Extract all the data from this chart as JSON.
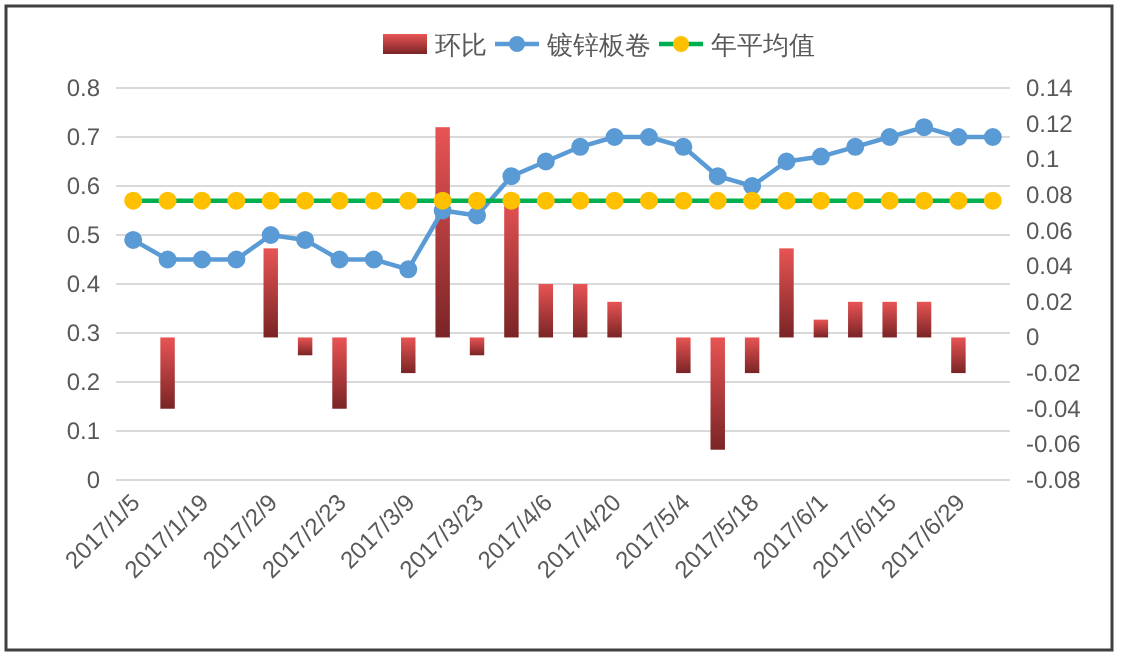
{
  "chart_data": {
    "type": "bar",
    "categories": [
      "2017/1/5",
      null,
      "2017/1/19",
      null,
      "2017/2/9",
      null,
      "2017/2/23",
      null,
      "2017/3/9",
      null,
      "2017/3/23",
      null,
      "2017/4/6",
      null,
      "2017/4/20",
      null,
      "2017/5/4",
      null,
      "2017/5/18",
      null,
      "2017/6/1",
      null,
      "2017/6/15",
      null,
      "2017/6/29",
      null
    ],
    "series": [
      {
        "name": "环比",
        "axis": "y2",
        "color": "#e85454",
        "values": [
          null,
          -0.04,
          null,
          null,
          0.05,
          -0.01,
          -0.04,
          null,
          -0.02,
          0.118,
          -0.01,
          0.08,
          0.03,
          0.03,
          0.02,
          null,
          -0.02,
          -0.063,
          -0.02,
          0.05,
          0.01,
          0.02,
          0.02,
          0.02,
          -0.02,
          null
        ]
      },
      {
        "name": "镀锌板卷",
        "type": "line",
        "color": "#5b9bd5",
        "values": [
          0.49,
          0.45,
          0.45,
          0.45,
          0.5,
          0.49,
          0.45,
          0.45,
          0.43,
          0.55,
          0.54,
          0.62,
          0.65,
          0.68,
          0.7,
          0.7,
          0.68,
          0.62,
          0.6,
          0.65,
          0.66,
          0.68,
          0.7,
          0.72,
          0.7,
          0.7
        ]
      },
      {
        "name": "年平均值",
        "type": "line",
        "color": "#00b050",
        "colors": [
          "#ffc000",
          "#ffc000",
          "#ffc000",
          "#ffc000",
          "#ffc000",
          "#ffc000",
          "#ffc000",
          "#ffc000",
          "#ffc000",
          "#ffc000",
          "#ffc000",
          "#ffc000",
          "#ffc000",
          "#ffc000",
          "#ffc000",
          "#ffc000",
          "#ffc000",
          "#ffc000",
          "#ffc000",
          "#ffc000",
          "#ffc000",
          "#ffc000",
          "#ffc000",
          "#ffc000",
          "#ffc000",
          "#ffc000"
        ],
        "values": [
          0.57,
          0.57,
          0.57,
          0.57,
          0.57,
          0.57,
          0.57,
          0.57,
          0.57,
          0.57,
          0.57,
          0.57,
          0.57,
          0.57,
          0.57,
          0.57,
          0.57,
          0.57,
          0.57,
          0.57,
          0.57,
          0.57,
          0.57,
          0.57,
          0.57,
          0.57
        ]
      }
    ],
    "ylim": [
      0,
      0.8
    ],
    "yticks": [
      0,
      0.1,
      0.2,
      0.3,
      0.4,
      0.5,
      0.6,
      0.7,
      0.8
    ],
    "y2lim": [
      -0.08,
      0.14
    ],
    "y2ticks": [
      -0.08,
      -0.06,
      -0.04,
      -0.02,
      0,
      0.02,
      0.04,
      0.06,
      0.08,
      0.1,
      0.12,
      0.14
    ],
    "grid": "y",
    "legend": "top",
    "marker": "circle",
    "line_style": "solid"
  }
}
